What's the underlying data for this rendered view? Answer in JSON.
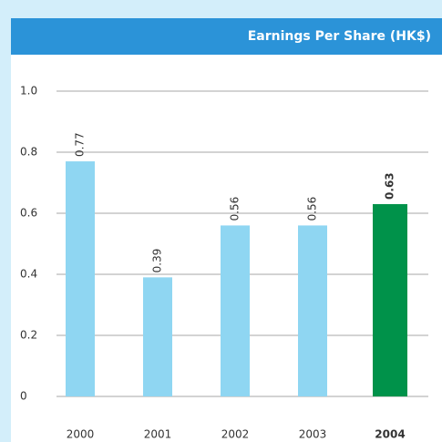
{
  "chart_data": {
    "type": "bar",
    "title": "Earnings Per Share (HK$)",
    "categories": [
      "2000",
      "2001",
      "2002",
      "2003",
      "2004"
    ],
    "values": [
      0.77,
      0.39,
      0.56,
      0.56,
      0.63
    ],
    "color": "#8fd6f2",
    "highlight_color": "#00924a",
    "highlight": [
      false,
      false,
      false,
      false,
      true
    ],
    "ylim": [
      0,
      1.0
    ],
    "yticks": [
      0,
      0.2,
      0.4,
      0.6,
      0.8,
      {
        "value": 1.0,
        "label": "1.0"
      }
    ],
    "grid": true
  }
}
